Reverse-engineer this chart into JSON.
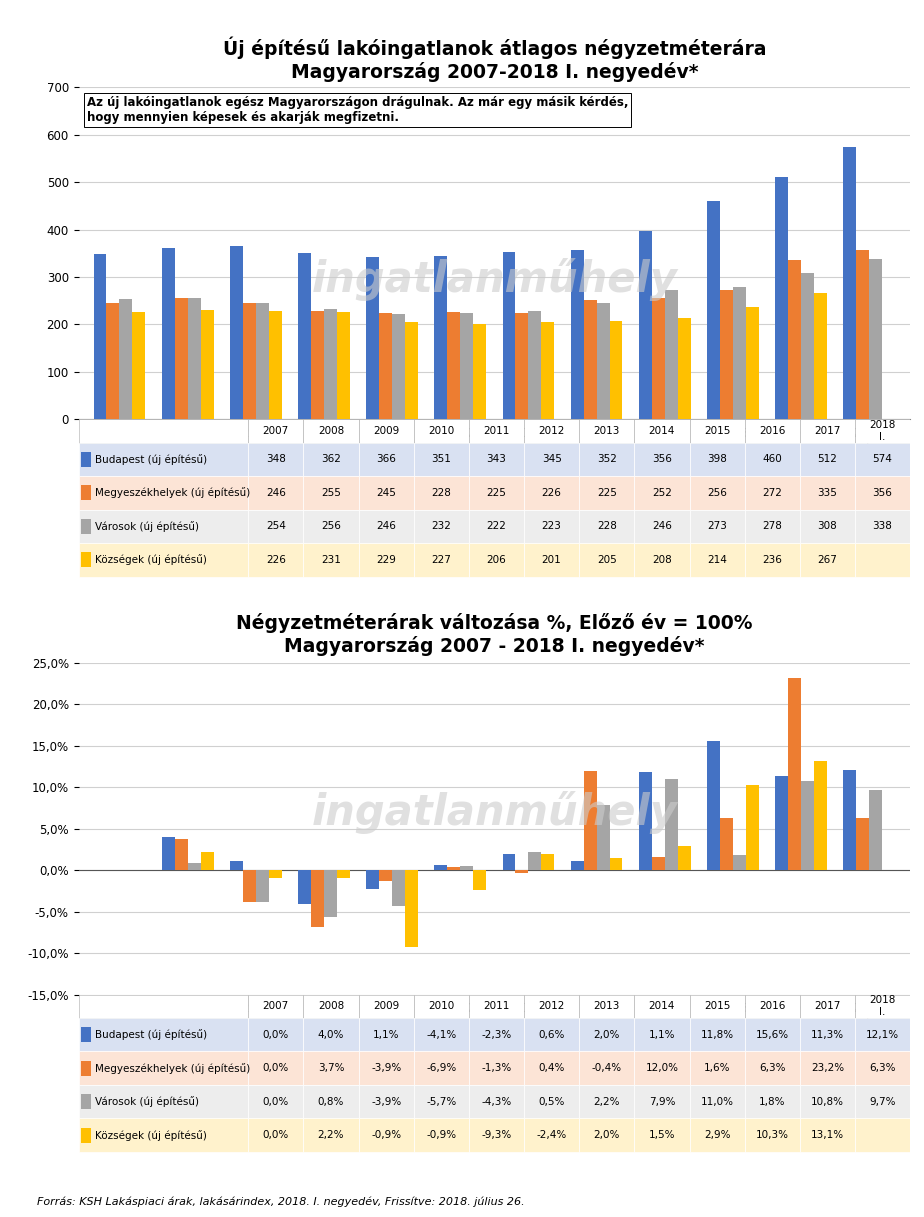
{
  "title1": "Új építésű lakóingatlanok átlagos négyzetméterára\nMagyarország 2007-2018 I. negyedév*",
  "title2": "Négyzetméterárak változása %, Előző év = 100%\nMagyarország 2007 - 2018 I. negyedév*",
  "annotation": "Az új lakóingatlanok egész Magyarországon drágulnak. Az már egy másik kérdés,\nhogy mennyien képesek és akarják megfizetni.",
  "footer": "Forrás: KSH Lakáspiaci árak, lakásárindex, 2018. I. negyedév, Frissítve: 2018. július 26.",
  "years_chart": [
    "2007",
    "2008",
    "2009",
    "2010",
    "2011",
    "2012",
    "2013",
    "2014",
    "2015",
    "2016",
    "2017",
    "2018.\nI."
  ],
  "years_table": [
    "2007",
    "2008",
    "2009",
    "2010",
    "2011",
    "2012",
    "2013",
    "2014",
    "2015",
    "2016",
    "2017",
    "2018\nI."
  ],
  "colors": {
    "Budapest": "#4472C4",
    "Megyeszekhelyek": "#ED7D31",
    "Varosok": "#A5A5A5",
    "Kozsegek": "#FFC000"
  },
  "legend_labels": [
    "Budapest (új építésű)",
    "Megyeszékhelyek (új építésű)",
    "Városok (új építésű)",
    "Községek (új építésű)"
  ],
  "bar1": {
    "Budapest": [
      348,
      362,
      366,
      351,
      343,
      345,
      352,
      356,
      398,
      460,
      512,
      574
    ],
    "Megyeszekhelyek": [
      246,
      255,
      245,
      228,
      225,
      226,
      225,
      252,
      256,
      272,
      335,
      356
    ],
    "Varosok": [
      254,
      256,
      246,
      232,
      222,
      223,
      228,
      246,
      273,
      278,
      308,
      338
    ],
    "Kozsegek": [
      226,
      231,
      229,
      227,
      206,
      201,
      205,
      208,
      214,
      236,
      267,
      null
    ]
  },
  "table1": {
    "Budapest": [
      "348",
      "362",
      "366",
      "351",
      "343",
      "345",
      "352",
      "356",
      "398",
      "460",
      "512",
      "574"
    ],
    "Megyeszekhelyek": [
      "246",
      "255",
      "245",
      "228",
      "225",
      "226",
      "225",
      "252",
      "256",
      "272",
      "335",
      "356"
    ],
    "Varosok": [
      "254",
      "256",
      "246",
      "232",
      "222",
      "223",
      "228",
      "246",
      "273",
      "278",
      "308",
      "338"
    ],
    "Kozsegek": [
      "226",
      "231",
      "229",
      "227",
      "206",
      "201",
      "205",
      "208",
      "214",
      "236",
      "267",
      ""
    ]
  },
  "bar2": {
    "Budapest": [
      0.0,
      4.0,
      1.1,
      -4.1,
      -2.3,
      0.6,
      2.0,
      1.1,
      11.8,
      15.6,
      11.3,
      12.1
    ],
    "Megyeszekhelyek": [
      0.0,
      3.7,
      -3.9,
      -6.9,
      -1.3,
      0.4,
      -0.4,
      12.0,
      1.6,
      6.3,
      23.2,
      6.3
    ],
    "Varosok": [
      0.0,
      0.8,
      -3.9,
      -5.7,
      -4.3,
      0.5,
      2.2,
      7.9,
      11.0,
      1.8,
      10.8,
      9.7
    ],
    "Kozsegek": [
      0.0,
      2.2,
      -0.9,
      -0.9,
      -9.3,
      -2.4,
      2.0,
      1.5,
      2.9,
      10.3,
      13.1,
      null
    ]
  },
  "table2": {
    "Budapest": [
      "0,0%",
      "4,0%",
      "1,1%",
      "-4,1%",
      "-2,3%",
      "0,6%",
      "2,0%",
      "1,1%",
      "11,8%",
      "15,6%",
      "11,3%",
      "12,1%"
    ],
    "Megyeszekhelyek": [
      "0,0%",
      "3,7%",
      "-3,9%",
      "-6,9%",
      "-1,3%",
      "0,4%",
      "-0,4%",
      "12,0%",
      "1,6%",
      "6,3%",
      "23,2%",
      "6,3%"
    ],
    "Varosok": [
      "0,0%",
      "0,8%",
      "-3,9%",
      "-5,7%",
      "-4,3%",
      "0,5%",
      "2,2%",
      "7,9%",
      "11,0%",
      "1,8%",
      "10,8%",
      "9,7%"
    ],
    "Kozsegek": [
      "0,0%",
      "2,2%",
      "-0,9%",
      "-0,9%",
      "-9,3%",
      "-2,4%",
      "2,0%",
      "1,5%",
      "2,9%",
      "10,3%",
      "13,1%",
      ""
    ]
  },
  "ylim1": [
    0,
    700
  ],
  "yticks1": [
    0,
    100,
    200,
    300,
    400,
    500,
    600,
    700
  ],
  "ylim2": [
    -15.0,
    25.0
  ],
  "yticks2": [
    -15.0,
    -10.0,
    -5.0,
    0.0,
    5.0,
    10.0,
    15.0,
    20.0,
    25.0
  ],
  "watermark": "ingatlanműhely",
  "bg_color": "#FFFFFF",
  "plot_bg": "#FFFFFF",
  "grid_color": "#D0D0D0",
  "table_row_colors": [
    "#D9E1F2",
    "#FCE4D6",
    "#EDEDED",
    "#FFF2CC"
  ],
  "table_border_color": "#FFFFFF"
}
